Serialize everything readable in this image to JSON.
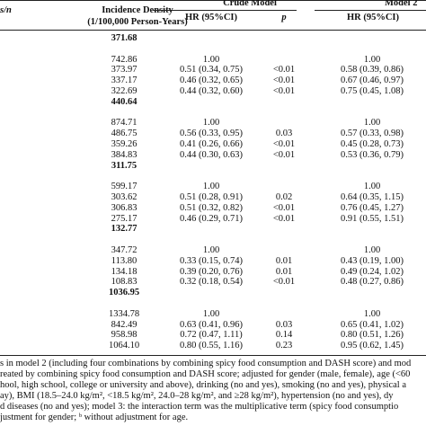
{
  "header": {
    "col_n": "s/n",
    "incidence_line1": "Incidence Density",
    "incidence_line2": "(1/100,000 Person-Years)",
    "crude_model": "Crude Model",
    "model2": "Model 2",
    "hr_label": "HR (95%CI)",
    "p_label": "p",
    "hr_label2": "HR (95%CI)"
  },
  "rows": [
    {
      "type": "total",
      "inc": "371.68"
    },
    {
      "type": "gap"
    },
    {
      "type": "row",
      "inc": "742.86",
      "hr1": "1.00",
      "p": "",
      "hr2": "1.00"
    },
    {
      "type": "row",
      "inc": "373.97",
      "hr1": "0.51 (0.34, 0.75)",
      "p": "<0.01",
      "hr2": "0.58 (0.39, 0.86)"
    },
    {
      "type": "row",
      "inc": "337.17",
      "hr1": "0.46 (0.32, 0.65)",
      "p": "<0.01",
      "hr2": "0.67 (0.46, 0.97)"
    },
    {
      "type": "row",
      "inc": "322.69",
      "hr1": "0.44 (0.32, 0.60)",
      "p": "<0.01",
      "hr2": "0.75 (0.45, 1.08)"
    },
    {
      "type": "total",
      "inc": "440.64"
    },
    {
      "type": "gap"
    },
    {
      "type": "row",
      "inc": "874.71",
      "hr1": "1.00",
      "p": "",
      "hr2": "1.00"
    },
    {
      "type": "row",
      "inc": "486.75",
      "hr1": "0.56 (0.33, 0.95)",
      "p": "0.03",
      "hr2": "0.57 (0.33, 0.98)"
    },
    {
      "type": "row",
      "inc": "359.26",
      "hr1": "0.41 (0.26, 0.66)",
      "p": "<0.01",
      "hr2": "0.45 (0.28, 0.73)"
    },
    {
      "type": "row",
      "inc": "384.83",
      "hr1": "0.44 (0.30, 0.63)",
      "p": "<0.01",
      "hr2": "0.53 (0.36, 0.79)"
    },
    {
      "type": "total",
      "inc": "311.75"
    },
    {
      "type": "gap"
    },
    {
      "type": "row",
      "inc": "599.17",
      "hr1": "1.00",
      "p": "",
      "hr2": "1.00"
    },
    {
      "type": "row",
      "inc": "303.62",
      "hr1": "0.51 (0.28, 0.91)",
      "p": "0.02",
      "hr2": "0.64 (0.35, 1.15)"
    },
    {
      "type": "row",
      "inc": "306.83",
      "hr1": "0.51 (0.32, 0.82)",
      "p": "<0.01",
      "hr2": "0.76 (0.45, 1.27)"
    },
    {
      "type": "row",
      "inc": "275.17",
      "hr1": "0.46 (0.29, 0.71)",
      "p": "<0.01",
      "hr2": "0.91 (0.55, 1.51)"
    },
    {
      "type": "total",
      "inc": "132.77"
    },
    {
      "type": "gap"
    },
    {
      "type": "row",
      "inc": "347.72",
      "hr1": "1.00",
      "p": "",
      "hr2": "1.00"
    },
    {
      "type": "row",
      "inc": "113.80",
      "hr1": "0.33 (0.15, 0.74)",
      "p": "0.01",
      "hr2": "0.43 (0.19, 1.00)"
    },
    {
      "type": "row",
      "inc": "134.18",
      "hr1": "0.39 (0.20, 0.76)",
      "p": "0.01",
      "hr2": "0.49 (0.24, 1.02)"
    },
    {
      "type": "row",
      "inc": "108.83",
      "hr1": "0.32 (0.18, 0.54)",
      "p": "<0.01",
      "hr2": "0.48 (0.27, 0.86)"
    },
    {
      "type": "total",
      "inc": "1036.95"
    },
    {
      "type": "gap"
    },
    {
      "type": "row",
      "inc": "1334.78",
      "hr1": "1.00",
      "p": "",
      "hr2": "1.00"
    },
    {
      "type": "row",
      "inc": "842.49",
      "hr1": "0.63 (0.41, 0.96)",
      "p": "0.03",
      "hr2": "0.65 (0.41, 1.02)"
    },
    {
      "type": "row",
      "inc": "958.98",
      "hr1": "0.72 (0.47, 1.11)",
      "p": "0.14",
      "hr2": "0.80 (0.51, 1.26)"
    },
    {
      "type": "row",
      "inc": "1064.10",
      "hr1": "0.80 (0.55, 1.16)",
      "p": "0.23",
      "hr2": "0.95 (0.62, 1.45)"
    }
  ],
  "footnotes": [
    "s in model 2 (including four combinations by combining spicy food consumption and DASH score) and mod",
    "reated by combining spicy food consumption and DASH score; adjusted for gender (male, female), age (<60",
    "hool, high school, college or university and above), drinking (no and yes), smoking (no and yes), physical a",
    "ay), BMI (18.5–24.0 kg/m², <18.5 kg/m², 24.0–28 kg/m², and ≥28 kg/m²), hypertension (no and yes), dy",
    "d diseases (no and yes); model 3: the interaction term was the multiplicative term (spicy food consumptio",
    "justment for gender; ᵇ without adjustment for age."
  ]
}
